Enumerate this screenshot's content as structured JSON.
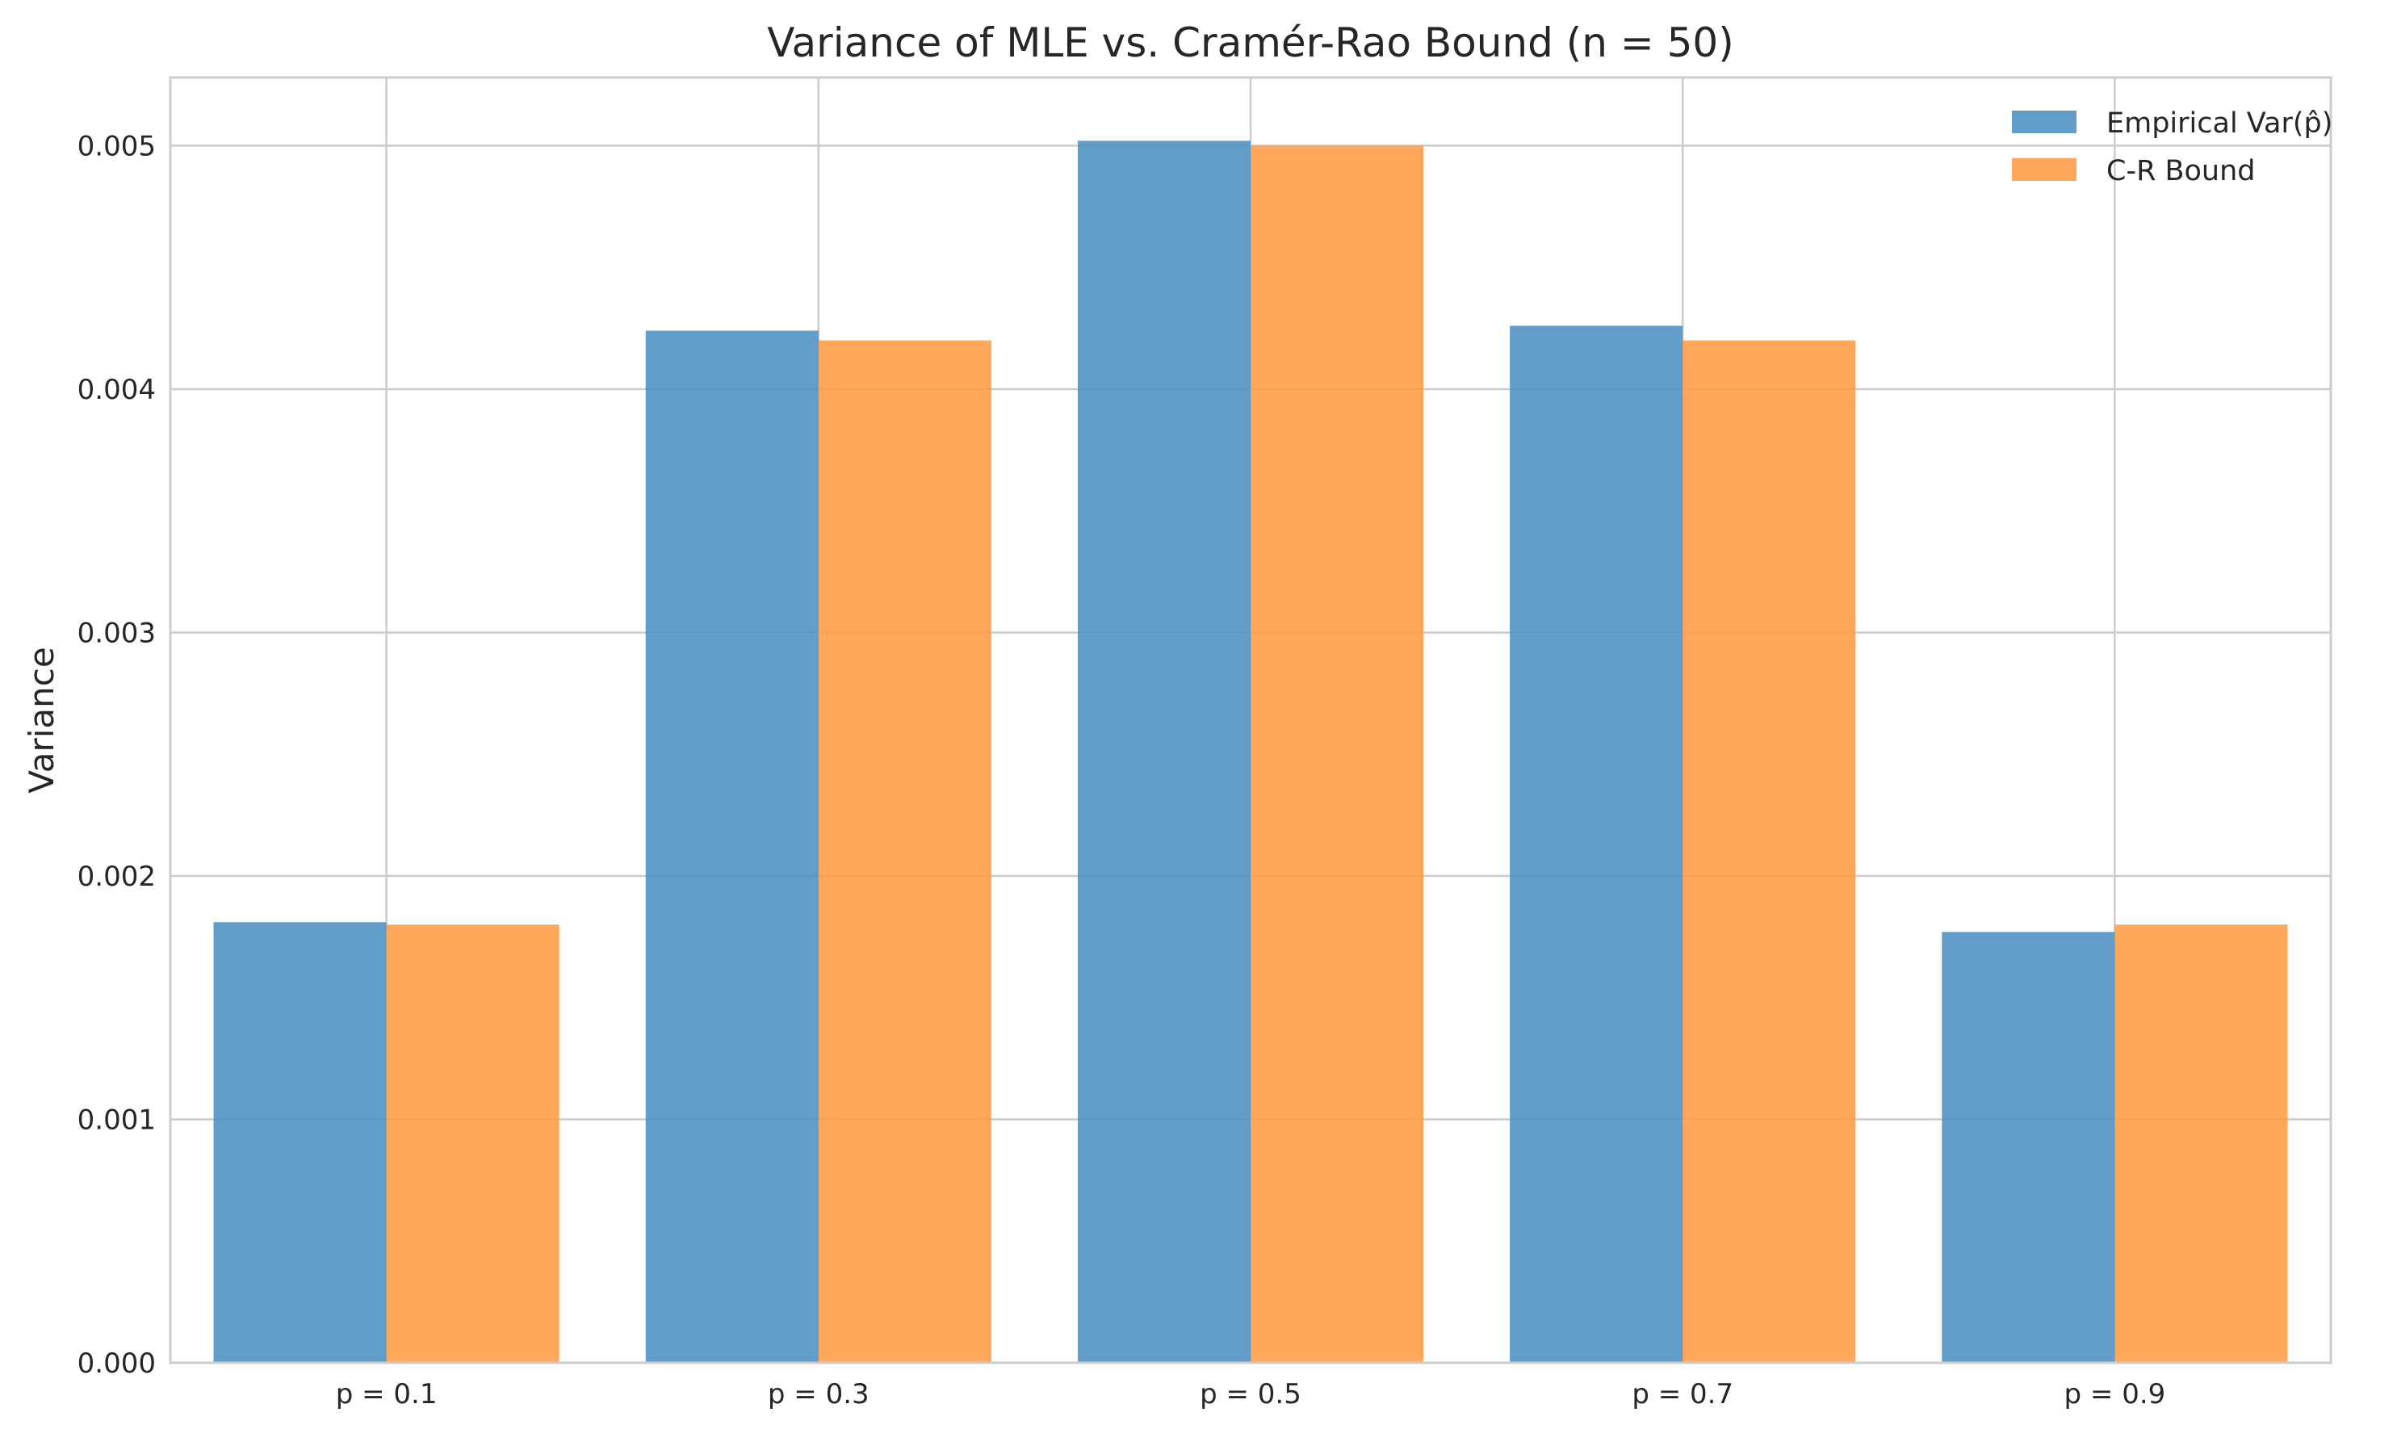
{
  "chart_data": {
    "type": "bar",
    "title": "Variance of MLE vs. Cramér-Rao Bound (n = 50)",
    "xlabel": "",
    "ylabel": "Variance",
    "categories": [
      "p = 0.1",
      "p = 0.3",
      "p = 0.5",
      "p = 0.7",
      "p = 0.9"
    ],
    "series": [
      {
        "name": "Empirical Var(p̂)",
        "color": "#4d91c4",
        "values": [
          0.00181,
          0.00424,
          0.00502,
          0.00426,
          0.00177
        ]
      },
      {
        "name": "C-R Bound",
        "color": "#ff9b44",
        "values": [
          0.0018,
          0.0042,
          0.005,
          0.0042,
          0.0018
        ]
      }
    ],
    "ylim": [
      0,
      0.00528
    ],
    "yticks": [
      "0.000",
      "0.001",
      "0.002",
      "0.003",
      "0.004",
      "0.005"
    ],
    "ytick_values": [
      0,
      0.001,
      0.002,
      0.003,
      0.004,
      0.005
    ],
    "grid": true,
    "legend_position": "top-right"
  }
}
